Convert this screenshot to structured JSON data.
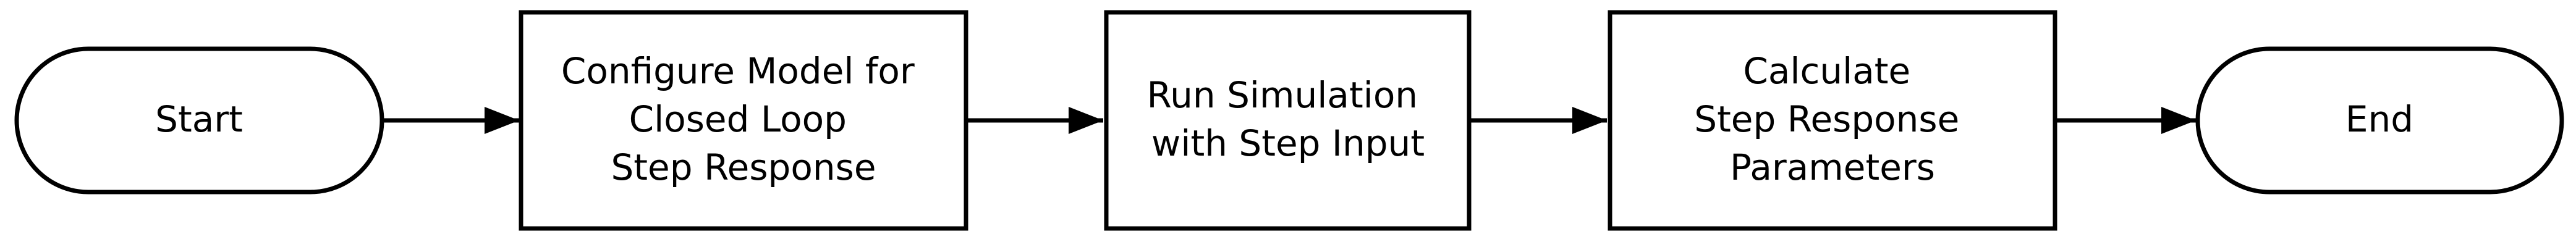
{
  "diagram": {
    "style": {
      "stroke_color": "#000000",
      "fill_color": "#ffffff",
      "text_color": "#000000"
    },
    "nodes": [
      {
        "id": "start",
        "shape": "terminator",
        "lines": [
          "Start"
        ]
      },
      {
        "id": "configure",
        "shape": "process",
        "lines": [
          "Configure Model for",
          "Closed Loop",
          "Step Response"
        ]
      },
      {
        "id": "run",
        "shape": "process",
        "lines": [
          "Run Simulation",
          "with Step Input"
        ]
      },
      {
        "id": "calculate",
        "shape": "process",
        "lines": [
          "Calculate",
          "Step Response",
          "Parameters"
        ]
      },
      {
        "id": "end",
        "shape": "terminator",
        "lines": [
          "End"
        ]
      }
    ],
    "edges": [
      {
        "from": "start",
        "to": "configure"
      },
      {
        "from": "configure",
        "to": "run"
      },
      {
        "from": "run",
        "to": "calculate"
      },
      {
        "from": "calculate",
        "to": "end"
      }
    ]
  }
}
